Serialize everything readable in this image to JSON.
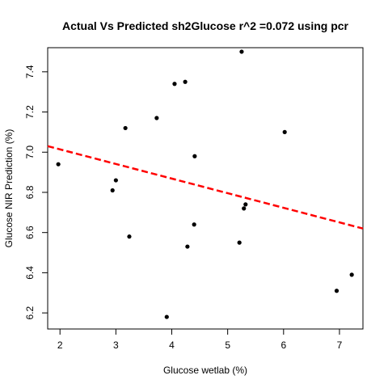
{
  "chart_data": {
    "type": "scatter",
    "title": "Actual Vs Predicted sh2Glucose r^2 =0.072 using pcr",
    "xlabel": "Glucose wetlab (%)",
    "ylabel": "Glucose NIR Prediction (%)",
    "xlim": [
      1.78,
      7.42
    ],
    "ylim": [
      6.12,
      7.52
    ],
    "xticks": [
      2,
      3,
      4,
      5,
      6,
      7
    ],
    "yticks": [
      6.2,
      6.4,
      6.6,
      6.8,
      7.0,
      7.2,
      7.4
    ],
    "xtick_labels": [
      "2",
      "3",
      "4",
      "5",
      "6",
      "7"
    ],
    "ytick_labels": [
      "6.2",
      "6.4",
      "6.6",
      "6.8",
      "7.0",
      "7.2",
      "7.4"
    ],
    "grid": false,
    "points": [
      {
        "x": 1.97,
        "y": 6.94
      },
      {
        "x": 2.94,
        "y": 6.81
      },
      {
        "x": 3.0,
        "y": 6.86
      },
      {
        "x": 3.17,
        "y": 7.12
      },
      {
        "x": 3.24,
        "y": 6.58
      },
      {
        "x": 3.73,
        "y": 7.17
      },
      {
        "x": 3.91,
        "y": 6.18
      },
      {
        "x": 4.05,
        "y": 7.34
      },
      {
        "x": 4.24,
        "y": 7.35
      },
      {
        "x": 4.28,
        "y": 6.53
      },
      {
        "x": 4.4,
        "y": 6.64
      },
      {
        "x": 4.41,
        "y": 6.98
      },
      {
        "x": 5.21,
        "y": 6.55
      },
      {
        "x": 5.25,
        "y": 7.5
      },
      {
        "x": 5.29,
        "y": 6.72
      },
      {
        "x": 5.32,
        "y": 6.74
      },
      {
        "x": 6.02,
        "y": 7.1
      },
      {
        "x": 6.95,
        "y": 6.31
      },
      {
        "x": 7.22,
        "y": 6.39
      }
    ],
    "fit_line": {
      "x": [
        1.78,
        7.42
      ],
      "y": [
        7.03,
        6.62
      ],
      "style": "dashed"
    },
    "colors": {
      "points": "#000000",
      "fit_line": "#ff0000"
    }
  }
}
